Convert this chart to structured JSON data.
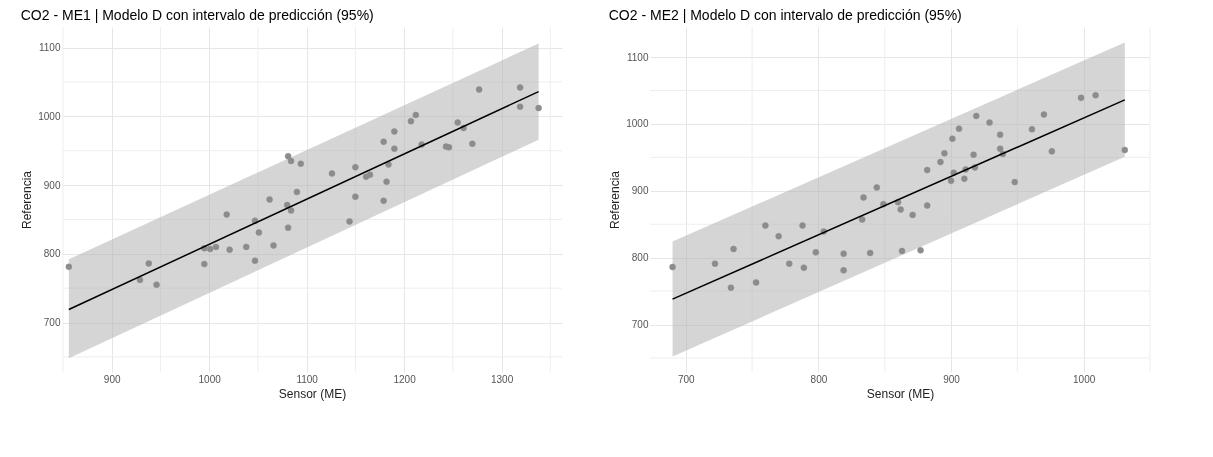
{
  "chart_data": [
    {
      "type": "scatter",
      "title": "CO2 - ME1 | Modelo D con intervalo de predicción (95%)",
      "xlabel": "Sensor (ME)",
      "ylabel": "Referencia",
      "grid": true,
      "xlim": [
        849,
        1362
      ],
      "ylim": [
        628,
        1130
      ],
      "xticks": [
        {
          "value": 850,
          "label": null
        },
        900,
        {
          "value": 950,
          "label": null
        },
        1000,
        {
          "value": 1050,
          "label": null
        },
        1100,
        {
          "value": 1150,
          "label": null
        },
        1200,
        {
          "value": 1250,
          "label": null
        },
        1300,
        {
          "value": 1350,
          "label": null
        }
      ],
      "yticks": [
        {
          "value": 650,
          "label": null
        },
        700,
        {
          "value": 750,
          "label": null
        },
        800,
        {
          "value": 850,
          "label": null
        },
        900,
        {
          "value": 950,
          "label": null
        },
        1000,
        {
          "value": 1050,
          "label": null
        },
        1100
      ],
      "series": [
        {
          "type": "line",
          "color": "#000000",
          "x": [
            856,
            1338
          ],
          "values": [
            719,
            1036
          ],
          "lower": [
            648,
            966
          ],
          "upper": [
            792,
            1106
          ]
        },
        {
          "type": "scatter",
          "color": "#8c8c8c",
          "marker": "circle",
          "x": [
            856,
            929,
            938,
            946,
            995,
            995,
            1001,
            1007,
            1018,
            1021,
            1038,
            1047,
            1047,
            1051,
            1062,
            1066,
            1080,
            1081,
            1081,
            1084,
            1084,
            1090,
            1094,
            1126,
            1144,
            1150,
            1150,
            1161,
            1165,
            1179,
            1182,
            1179,
            1184,
            1190,
            1190,
            1207,
            1212,
            1218,
            1243,
            1246,
            1255,
            1261,
            1270,
            1277,
            1319,
            1319,
            1338
          ],
          "values": [
            781,
            762,
            786,
            755,
            808,
            785,
            807,
            810,
            857,
            806,
            810,
            848,
            790,
            831,
            879,
            812,
            871,
            942,
            838,
            935,
            863,
            890,
            931,
            917,
            847,
            926,
            883,
            912,
            915,
            963,
            905,
            877,
            930,
            978,
            953,
            993,
            1002,
            959,
            956,
            955,
            991,
            983,
            960,
            1039,
            1042,
            1014,
            1012
          ]
        }
      ]
    },
    {
      "type": "scatter",
      "title": "CO2 - ME2 | Modelo D con intervalo de predicción (95%)",
      "xlabel": "Sensor (ME)",
      "ylabel": "Referencia",
      "grid": true,
      "xlim": [
        673,
        1050
      ],
      "ylim": [
        629,
        1145
      ],
      "xticks": [
        700,
        {
          "value": 750,
          "label": null
        },
        800,
        {
          "value": 850,
          "label": null
        },
        900,
        {
          "value": 950,
          "label": null
        },
        1000,
        {
          "value": 1050,
          "label": null
        }
      ],
      "yticks": [
        {
          "value": 650,
          "label": null
        },
        700,
        {
          "value": 750,
          "label": null
        },
        800,
        {
          "value": 850,
          "label": null
        },
        900,
        {
          "value": 950,
          "label": null
        },
        1000,
        {
          "value": 1050,
          "label": null
        },
        1100
      ],
      "series": [
        {
          "type": "line",
          "color": "#000000",
          "x": [
            690,
            1031
          ],
          "values": [
            738,
            1036
          ],
          "lower": [
            652,
            951
          ],
          "upper": [
            824,
            1122
          ]
        },
        {
          "type": "scatter",
          "color": "#8c8c8c",
          "marker": "circle",
          "x": [
            690,
            722,
            734,
            736,
            753,
            760,
            770,
            778,
            788,
            789,
            798,
            804,
            819,
            819,
            833,
            834,
            839,
            844,
            849,
            860,
            862,
            863,
            871,
            877,
            882,
            882,
            892,
            895,
            900,
            901,
            902,
            906,
            910,
            911,
            917,
            918,
            919,
            929,
            937,
            937,
            939,
            948,
            961,
            970,
            976,
            998,
            1009,
            1031
          ],
          "values": [
            786,
            791,
            755,
            813,
            763,
            848,
            832,
            791,
            848,
            785,
            808,
            839,
            806,
            781,
            857,
            890,
            807,
            905,
            880,
            883,
            872,
            810,
            864,
            811,
            931,
            878,
            943,
            956,
            915,
            978,
            927,
            993,
            918,
            932,
            954,
            935,
            1012,
            1002,
            984,
            963,
            955,
            913,
            992,
            1014,
            959,
            1039,
            1043,
            961
          ]
        }
      ]
    }
  ]
}
